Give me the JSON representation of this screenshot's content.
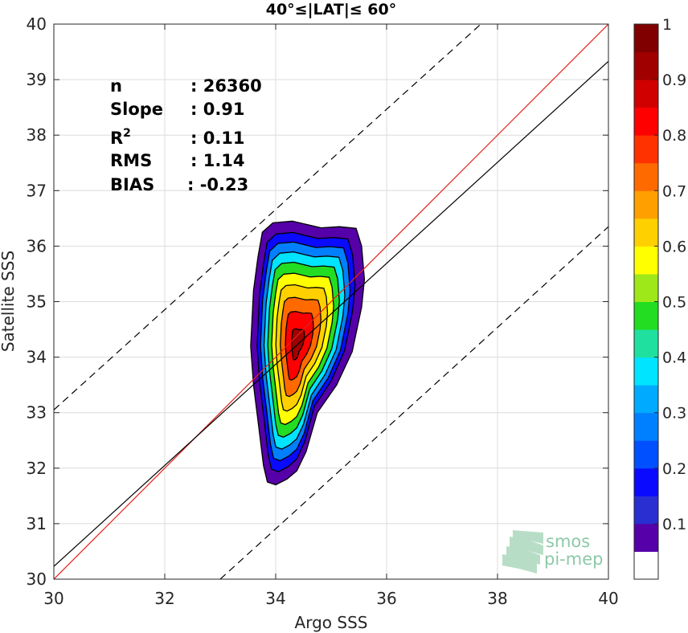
{
  "chart_data": {
    "type": "contour",
    "title": "40°≤|LAT|≤ 60°",
    "xlabel": "Argo SSS",
    "ylabel": "Satellite SSS",
    "xlim": [
      30,
      40
    ],
    "ylim": [
      30,
      40
    ],
    "xticks": [
      "30",
      "32",
      "34",
      "36",
      "38",
      "40"
    ],
    "yticks": [
      "30",
      "31",
      "32",
      "33",
      "34",
      "35",
      "36",
      "37",
      "38",
      "39",
      "40"
    ],
    "grid": true,
    "stats": [
      {
        "name": "n",
        "value": ": 26360"
      },
      {
        "name": "Slope",
        "value": ": 0.91"
      },
      {
        "name": "R",
        "sup": "2",
        "value": ": 0.11"
      },
      {
        "name": "RMS",
        "value": ": 1.14"
      },
      {
        "name": "BIAS",
        "value": ": -0.23"
      }
    ],
    "lines": [
      {
        "id": "one-to-one",
        "color": "#e8201a",
        "style": "solid",
        "points": [
          [
            30,
            30
          ],
          [
            40,
            40
          ]
        ]
      },
      {
        "id": "regression",
        "color": "#000000",
        "style": "solid",
        "slope": 0.91,
        "intercept": 2.93
      },
      {
        "id": "upper-bound",
        "color": "#000000",
        "style": "dashed",
        "points": [
          [
            30,
            33.05
          ],
          [
            37.7,
            40
          ]
        ]
      },
      {
        "id": "lower-bound",
        "color": "#000000",
        "style": "dashed",
        "points": [
          [
            33.0,
            30
          ],
          [
            40,
            36.35
          ]
        ]
      }
    ],
    "density": {
      "center": [
        34.38,
        34.25
      ],
      "outline": [
        [
          33.76,
          36.25
        ],
        [
          33.95,
          36.42
        ],
        [
          34.3,
          36.45
        ],
        [
          34.82,
          36.33
        ],
        [
          35.15,
          36.35
        ],
        [
          35.45,
          36.32
        ],
        [
          35.55,
          36.0
        ],
        [
          35.6,
          35.4
        ],
        [
          35.55,
          34.9
        ],
        [
          35.38,
          34.1
        ],
        [
          35.1,
          33.5
        ],
        [
          34.75,
          33.0
        ],
        [
          34.55,
          32.3
        ],
        [
          34.38,
          31.95
        ],
        [
          34.2,
          31.8
        ],
        [
          34.0,
          31.7
        ],
        [
          33.85,
          31.75
        ],
        [
          33.78,
          32.05
        ],
        [
          33.7,
          32.7
        ],
        [
          33.6,
          33.5
        ],
        [
          33.55,
          34.2
        ],
        [
          33.6,
          35.2
        ],
        [
          33.68,
          35.8
        ]
      ],
      "levels": [
        0.05,
        0.15,
        0.25,
        0.35,
        0.45,
        0.55,
        0.65,
        0.75,
        0.85,
        0.95
      ]
    },
    "colorbar": {
      "ticks": [
        "0.1",
        "0.2",
        "0.3",
        "0.4",
        "0.5",
        "0.6",
        "0.7",
        "0.8",
        "0.9",
        "1"
      ],
      "colors": [
        "#ffffff",
        "#5500a8",
        "#2a2fd2",
        "#0a0aff",
        "#0050ff",
        "#0080ff",
        "#00aaff",
        "#00e4ff",
        "#20e0a0",
        "#22dd22",
        "#9ee81a",
        "#ffff00",
        "#ffd000",
        "#ffa000",
        "#ff6a00",
        "#ff3200",
        "#ff0000",
        "#d00000",
        "#a00000",
        "#800000"
      ]
    }
  },
  "watermark": {
    "line1": "smos",
    "line2": "pi-mep"
  }
}
